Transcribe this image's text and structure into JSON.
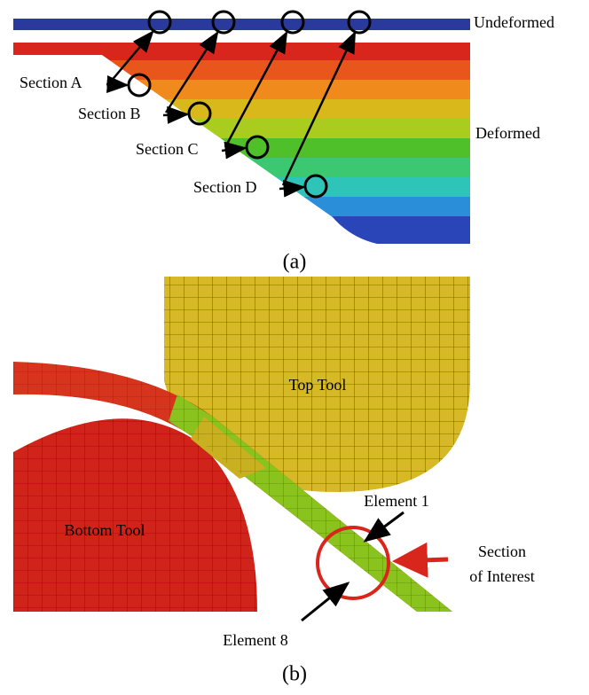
{
  "panel_a": {
    "undeformed": "Undeformed",
    "deformed": "Deformed",
    "sections": [
      "Section A",
      "Section B",
      "Section C",
      "Section D"
    ],
    "caption": "(a)"
  },
  "panel_b": {
    "top_tool": "Top Tool",
    "bottom_tool": "Bottom Tool",
    "element_1": "Element 1",
    "element_8": "Element 8",
    "section_of_interest": [
      "Section",
      "of Interest"
    ],
    "caption": "(b)"
  }
}
